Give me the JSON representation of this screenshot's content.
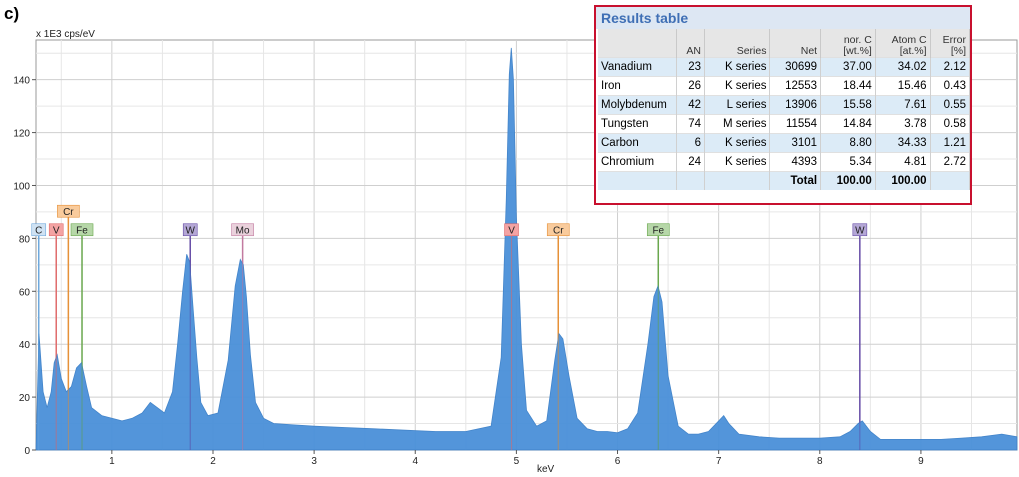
{
  "panel_label": "c)",
  "chart_data": {
    "type": "line",
    "title": "",
    "xlabel": "keV",
    "ylabel": "",
    "y_unit_label": "x 1E3 cps/eV",
    "xlim": [
      0.25,
      9.95
    ],
    "ylim": [
      0,
      155
    ],
    "x_ticks": [
      1,
      2,
      3,
      4,
      5,
      6,
      7,
      8,
      9
    ],
    "y_ticks": [
      0,
      20,
      40,
      60,
      80,
      100,
      120,
      140
    ],
    "grid": true,
    "series": [
      {
        "color": "#4a90d9",
        "x": [
          0.25,
          0.28,
          0.32,
          0.36,
          0.4,
          0.43,
          0.46,
          0.5,
          0.55,
          0.6,
          0.65,
          0.7,
          0.75,
          0.8,
          0.9,
          1.0,
          1.1,
          1.2,
          1.3,
          1.38,
          1.45,
          1.52,
          1.6,
          1.65,
          1.7,
          1.74,
          1.77,
          1.8,
          1.84,
          1.88,
          1.95,
          2.05,
          2.15,
          2.22,
          2.27,
          2.3,
          2.33,
          2.37,
          2.42,
          2.5,
          2.6,
          2.8,
          3.0,
          3.3,
          3.6,
          3.9,
          4.2,
          4.5,
          4.75,
          4.85,
          4.9,
          4.93,
          4.95,
          4.97,
          5.0,
          5.05,
          5.1,
          5.2,
          5.3,
          5.38,
          5.42,
          5.46,
          5.52,
          5.6,
          5.7,
          5.8,
          5.9,
          6.0,
          6.1,
          6.2,
          6.3,
          6.36,
          6.4,
          6.44,
          6.5,
          6.6,
          6.7,
          6.8,
          6.9,
          7.0,
          7.05,
          7.1,
          7.2,
          7.4,
          7.6,
          7.8,
          8.0,
          8.2,
          8.3,
          8.38,
          8.42,
          8.5,
          8.6,
          8.8,
          9.0,
          9.2,
          9.4,
          9.6,
          9.8,
          9.95
        ],
        "y": [
          0,
          44,
          22,
          16,
          22,
          33,
          36,
          27,
          22,
          24,
          31,
          33,
          24,
          16,
          13,
          12,
          11,
          12,
          14,
          18,
          16,
          14,
          22,
          40,
          60,
          74,
          71,
          55,
          35,
          18,
          13,
          14,
          34,
          62,
          72,
          70,
          58,
          36,
          18,
          12,
          10,
          9.5,
          9,
          8.5,
          8,
          7.5,
          7,
          7,
          9,
          35,
          95,
          142,
          152,
          140,
          88,
          40,
          15,
          9,
          11,
          34,
          44,
          42,
          28,
          12,
          8,
          7,
          7,
          6.5,
          8,
          14,
          40,
          58,
          62,
          56,
          28,
          9,
          6,
          6,
          7,
          11,
          13,
          10,
          6,
          5,
          4.5,
          4.5,
          4.5,
          5,
          7,
          10,
          11,
          7,
          4,
          4,
          4,
          4,
          4.5,
          5,
          6,
          5
        ]
      }
    ],
    "element_lines": [
      {
        "label": "C",
        "x": 0.277,
        "color": "#6fa8dc",
        "tag_fill": "#cfe2f3",
        "top": 81
      },
      {
        "label": "V",
        "x": 0.45,
        "color": "#e06c6c",
        "tag_fill": "#f4a3a3",
        "top": 81
      },
      {
        "label": "Cr",
        "x": 0.57,
        "color": "#e69138",
        "tag_fill": "#f9cb9c",
        "top": 88
      },
      {
        "label": "Fe",
        "x": 0.705,
        "color": "#6aa84f",
        "tag_fill": "#b6d7a8",
        "top": 81
      },
      {
        "label": "W",
        "x": 1.775,
        "color": "#674ea7",
        "tag_fill": "#b4a7d6",
        "top": 81
      },
      {
        "label": "Mo",
        "x": 2.293,
        "color": "#c27ba0",
        "tag_fill": "#ead1dc",
        "top": 81
      },
      {
        "label": "V",
        "x": 4.952,
        "color": "#e06c6c",
        "tag_fill": "#f4a3a3",
        "top": 81
      },
      {
        "label": "Cr",
        "x": 5.414,
        "color": "#e69138",
        "tag_fill": "#f9cb9c",
        "top": 81
      },
      {
        "label": "Fe",
        "x": 6.403,
        "color": "#6aa84f",
        "tag_fill": "#b6d7a8",
        "top": 81
      },
      {
        "label": "W",
        "x": 8.396,
        "color": "#674ea7",
        "tag_fill": "#b4a7d6",
        "top": 81
      }
    ]
  },
  "results_table": {
    "title": "Results table",
    "headers": [
      {
        "line1": "",
        "line2": ""
      },
      {
        "line1": "",
        "line2": "AN"
      },
      {
        "line1": "",
        "line2": "Series"
      },
      {
        "line1": "",
        "line2": "Net"
      },
      {
        "line1": "nor. C",
        "line2": "[wt.%]"
      },
      {
        "line1": "Atom C",
        "line2": "[at.%]"
      },
      {
        "line1": "Error",
        "line2": "[%]"
      }
    ],
    "rows": [
      [
        "Vanadium",
        "23",
        "K series",
        "30699",
        "37.00",
        "34.02",
        "2.12"
      ],
      [
        "Iron",
        "26",
        "K series",
        "12553",
        "18.44",
        "15.46",
        "0.43"
      ],
      [
        "Molybdenum",
        "42",
        "L series",
        "13906",
        "15.58",
        "7.61",
        "0.55"
      ],
      [
        "Tungsten",
        "74",
        "M series",
        "11554",
        "14.84",
        "3.78",
        "0.58"
      ],
      [
        "Carbon",
        "6",
        "K series",
        "3101",
        "8.80",
        "34.33",
        "1.21"
      ],
      [
        "Chromium",
        "24",
        "K series",
        "4393",
        "5.34",
        "4.81",
        "2.72"
      ]
    ],
    "total": {
      "label": "Total",
      "nor_c": "100.00",
      "atom_c": "100.00"
    }
  }
}
